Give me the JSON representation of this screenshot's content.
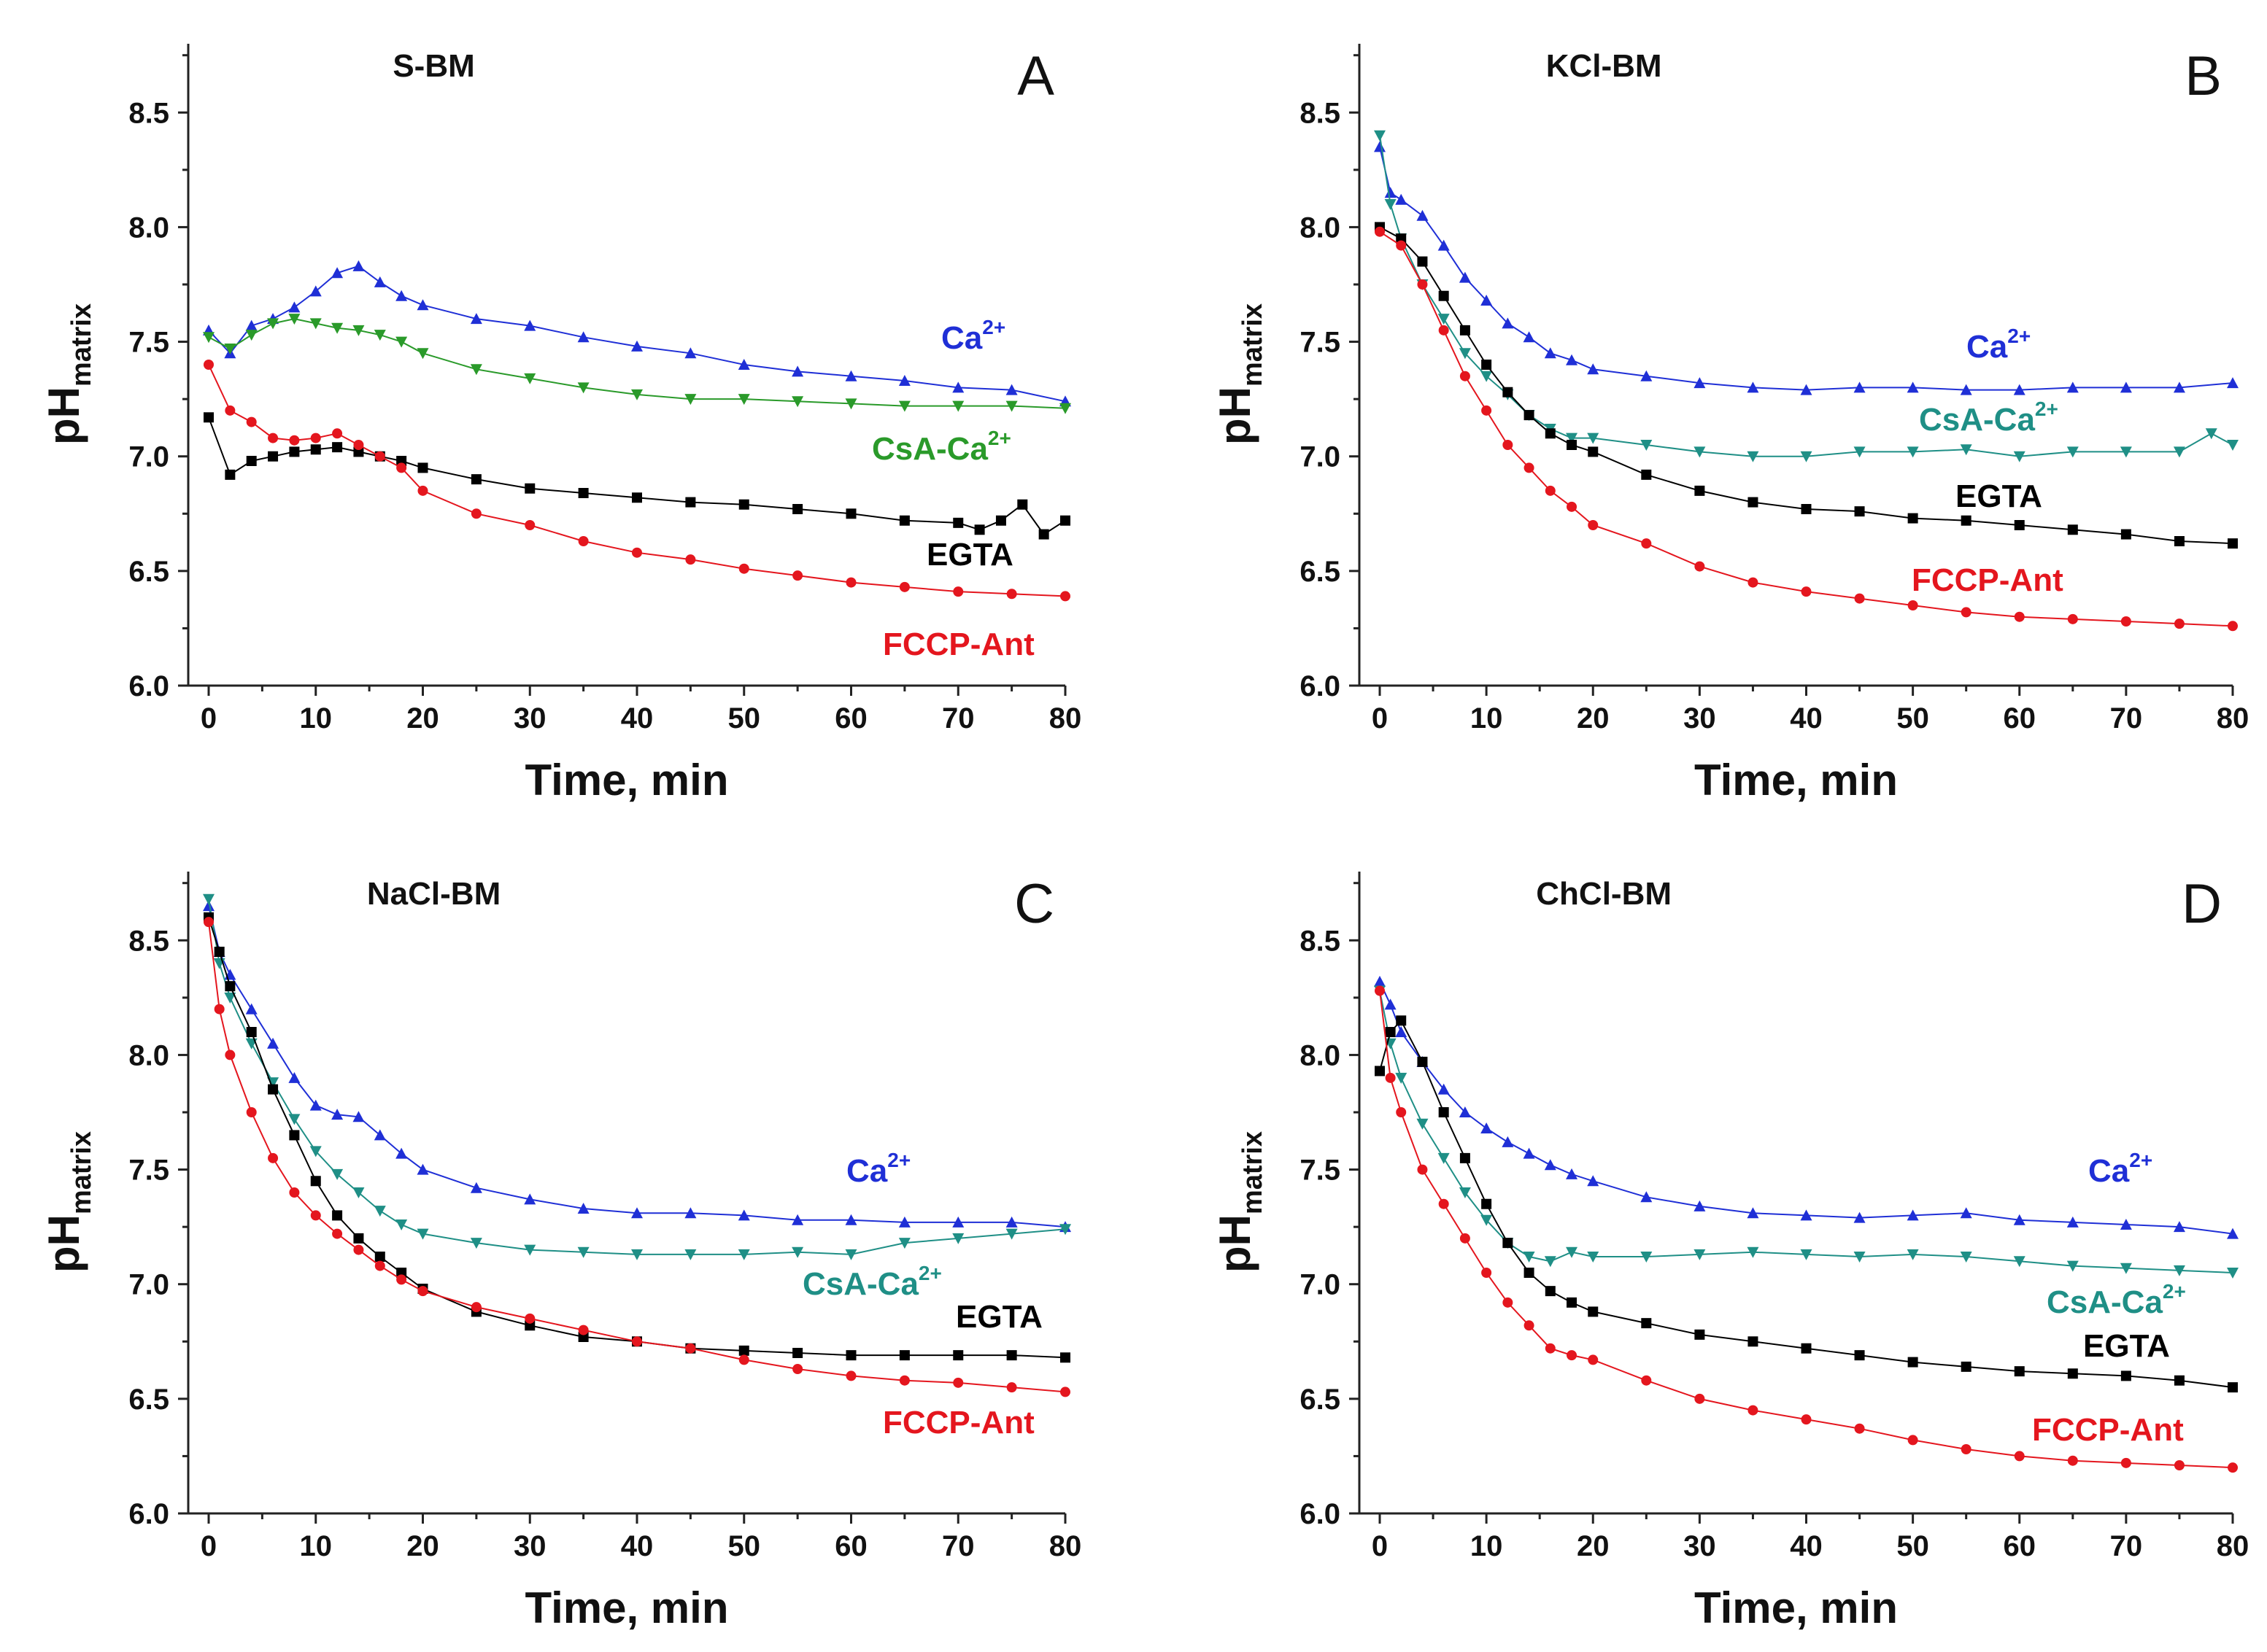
{
  "figure": {
    "x_axis_label": "Time, min"
  },
  "chart_data": [
    {
      "type": "line",
      "panel": "A",
      "title": "S-BM",
      "xlabel": "Time, min",
      "ylabel_main": "pH",
      "ylabel_sub": "matrix",
      "xlim": [
        0,
        80
      ],
      "ylim": [
        6.0,
        8.8
      ],
      "xticks": [
        "0",
        "10",
        "20",
        "30",
        "40",
        "50",
        "60",
        "70",
        "80"
      ],
      "yticks": [
        "6.0",
        "6.5",
        "7.0",
        "7.5",
        "8.0",
        "8.5"
      ],
      "series": [
        {
          "name": "Ca2+",
          "label_main": "Ca",
          "label_sup": "2+",
          "color": "#1f2fd6",
          "marker": "triangle-up",
          "x": [
            0,
            2,
            4,
            6,
            8,
            10,
            12,
            14,
            16,
            18,
            20,
            25,
            30,
            35,
            40,
            45,
            50,
            55,
            60,
            65,
            70,
            75,
            80
          ],
          "y": [
            7.55,
            7.45,
            7.57,
            7.6,
            7.65,
            7.72,
            7.8,
            7.83,
            7.76,
            7.7,
            7.66,
            7.6,
            7.57,
            7.52,
            7.48,
            7.45,
            7.4,
            7.37,
            7.35,
            7.33,
            7.3,
            7.29,
            7.24
          ]
        },
        {
          "name": "CsA-Ca2+",
          "label_main": "CsA-Ca",
          "label_sup": "2+",
          "color": "#2a9a2a",
          "marker": "triangle-down",
          "x": [
            0,
            2,
            4,
            6,
            8,
            10,
            12,
            14,
            16,
            18,
            20,
            25,
            30,
            35,
            40,
            45,
            50,
            55,
            60,
            65,
            70,
            75,
            80
          ],
          "y": [
            7.52,
            7.47,
            7.53,
            7.58,
            7.6,
            7.58,
            7.56,
            7.55,
            7.53,
            7.5,
            7.45,
            7.38,
            7.34,
            7.3,
            7.27,
            7.25,
            7.25,
            7.24,
            7.23,
            7.22,
            7.22,
            7.22,
            7.21
          ]
        },
        {
          "name": "EGTA",
          "label_main": "EGTA",
          "label_sup": "",
          "color": "#000000",
          "marker": "square",
          "x": [
            0,
            2,
            4,
            6,
            8,
            10,
            12,
            14,
            16,
            18,
            20,
            25,
            30,
            35,
            40,
            45,
            50,
            55,
            60,
            65,
            70,
            72,
            74,
            76,
            78,
            80
          ],
          "y": [
            7.17,
            6.92,
            6.98,
            7.0,
            7.02,
            7.03,
            7.04,
            7.02,
            7.0,
            6.98,
            6.95,
            6.9,
            6.86,
            6.84,
            6.82,
            6.8,
            6.79,
            6.77,
            6.75,
            6.72,
            6.71,
            6.68,
            6.72,
            6.79,
            6.66,
            6.72
          ]
        },
        {
          "name": "FCCP-Ant",
          "label_main": "FCCP-Ant",
          "label_sup": "",
          "color": "#e4161e",
          "marker": "circle",
          "x": [
            0,
            2,
            4,
            6,
            8,
            10,
            12,
            14,
            16,
            18,
            20,
            25,
            30,
            35,
            40,
            45,
            50,
            55,
            60,
            65,
            70,
            75,
            80
          ],
          "y": [
            7.4,
            7.2,
            7.15,
            7.08,
            7.07,
            7.08,
            7.1,
            7.05,
            7.0,
            6.95,
            6.85,
            6.75,
            6.7,
            6.63,
            6.58,
            6.55,
            6.51,
            6.48,
            6.45,
            6.43,
            6.41,
            6.4,
            6.39
          ]
        }
      ]
    },
    {
      "type": "line",
      "panel": "B",
      "title": "KCl-BM",
      "xlabel": "Time, min",
      "ylabel_main": "pH",
      "ylabel_sub": "matrix",
      "xlim": [
        0,
        80
      ],
      "ylim": [
        6.0,
        8.8
      ],
      "xticks": [
        "0",
        "10",
        "20",
        "30",
        "40",
        "50",
        "60",
        "70",
        "80"
      ],
      "yticks": [
        "6.0",
        "6.5",
        "7.0",
        "7.5",
        "8.0",
        "8.5"
      ],
      "series": [
        {
          "name": "Ca2+",
          "label_main": "Ca",
          "label_sup": "2+",
          "color": "#1f2fd6",
          "marker": "triangle-up",
          "x": [
            0,
            1,
            2,
            4,
            6,
            8,
            10,
            12,
            14,
            16,
            18,
            20,
            25,
            30,
            35,
            40,
            45,
            50,
            55,
            60,
            65,
            70,
            75,
            80
          ],
          "y": [
            8.35,
            8.15,
            8.12,
            8.05,
            7.92,
            7.78,
            7.68,
            7.58,
            7.52,
            7.45,
            7.42,
            7.38,
            7.35,
            7.32,
            7.3,
            7.29,
            7.3,
            7.3,
            7.29,
            7.29,
            7.3,
            7.3,
            7.3,
            7.32
          ]
        },
        {
          "name": "CsA-Ca2+",
          "label_main": "CsA-Ca",
          "label_sup": "2+",
          "color": "#1f8f86",
          "marker": "triangle-down",
          "x": [
            0,
            1,
            2,
            4,
            6,
            8,
            10,
            12,
            14,
            16,
            18,
            20,
            25,
            30,
            35,
            40,
            45,
            50,
            55,
            60,
            65,
            70,
            75,
            78,
            80
          ],
          "y": [
            8.4,
            8.1,
            7.95,
            7.75,
            7.6,
            7.45,
            7.35,
            7.27,
            7.18,
            7.12,
            7.08,
            7.08,
            7.05,
            7.02,
            7.0,
            7.0,
            7.02,
            7.02,
            7.03,
            7.0,
            7.02,
            7.02,
            7.02,
            7.1,
            7.05
          ]
        },
        {
          "name": "EGTA",
          "label_main": "EGTA",
          "label_sup": "",
          "color": "#000000",
          "marker": "square",
          "x": [
            0,
            2,
            4,
            6,
            8,
            10,
            12,
            14,
            16,
            18,
            20,
            25,
            30,
            35,
            40,
            45,
            50,
            55,
            60,
            65,
            70,
            75,
            80
          ],
          "y": [
            8.0,
            7.95,
            7.85,
            7.7,
            7.55,
            7.4,
            7.28,
            7.18,
            7.1,
            7.05,
            7.02,
            6.92,
            6.85,
            6.8,
            6.77,
            6.76,
            6.73,
            6.72,
            6.7,
            6.68,
            6.66,
            6.63,
            6.62
          ]
        },
        {
          "name": "FCCP-Ant",
          "label_main": "FCCP-Ant",
          "label_sup": "",
          "color": "#e4161e",
          "marker": "circle",
          "x": [
            0,
            2,
            4,
            6,
            8,
            10,
            12,
            14,
            16,
            18,
            20,
            25,
            30,
            35,
            40,
            45,
            50,
            55,
            60,
            65,
            70,
            75,
            80
          ],
          "y": [
            7.98,
            7.92,
            7.75,
            7.55,
            7.35,
            7.2,
            7.05,
            6.95,
            6.85,
            6.78,
            6.7,
            6.62,
            6.52,
            6.45,
            6.41,
            6.38,
            6.35,
            6.32,
            6.3,
            6.29,
            6.28,
            6.27,
            6.26
          ]
        }
      ]
    },
    {
      "type": "line",
      "panel": "C",
      "title": "NaCl-BM",
      "xlabel": "Time, min",
      "ylabel_main": "pH",
      "ylabel_sub": "matrix",
      "xlim": [
        0,
        80
      ],
      "ylim": [
        6.0,
        8.8
      ],
      "xticks": [
        "0",
        "10",
        "20",
        "30",
        "40",
        "50",
        "60",
        "70",
        "80"
      ],
      "yticks": [
        "6.0",
        "6.5",
        "7.0",
        "7.5",
        "8.0",
        "8.5"
      ],
      "series": [
        {
          "name": "Ca2+",
          "label_main": "Ca",
          "label_sup": "2+",
          "color": "#1f2fd6",
          "marker": "triangle-up",
          "x": [
            0,
            1,
            2,
            4,
            6,
            8,
            10,
            12,
            14,
            16,
            18,
            20,
            25,
            30,
            35,
            40,
            45,
            50,
            55,
            60,
            65,
            70,
            75,
            80
          ],
          "y": [
            8.65,
            8.45,
            8.35,
            8.2,
            8.05,
            7.9,
            7.78,
            7.74,
            7.73,
            7.65,
            7.57,
            7.5,
            7.42,
            7.37,
            7.33,
            7.31,
            7.31,
            7.3,
            7.28,
            7.28,
            7.27,
            7.27,
            7.27,
            7.25
          ]
        },
        {
          "name": "CsA-Ca2+",
          "label_main": "CsA-Ca",
          "label_sup": "2+",
          "color": "#1f8f86",
          "marker": "triangle-down",
          "x": [
            0,
            1,
            2,
            4,
            6,
            8,
            10,
            12,
            14,
            16,
            18,
            20,
            25,
            30,
            35,
            40,
            45,
            50,
            55,
            60,
            65,
            70,
            75,
            80
          ],
          "y": [
            8.68,
            8.4,
            8.25,
            8.05,
            7.88,
            7.72,
            7.58,
            7.48,
            7.4,
            7.32,
            7.26,
            7.22,
            7.18,
            7.15,
            7.14,
            7.13,
            7.13,
            7.13,
            7.14,
            7.13,
            7.18,
            7.2,
            7.22,
            7.24
          ]
        },
        {
          "name": "EGTA",
          "label_main": "EGTA",
          "label_sup": "",
          "color": "#000000",
          "marker": "square",
          "x": [
            0,
            1,
            2,
            4,
            6,
            8,
            10,
            12,
            14,
            16,
            18,
            20,
            25,
            30,
            35,
            40,
            45,
            50,
            55,
            60,
            65,
            70,
            75,
            80
          ],
          "y": [
            8.6,
            8.45,
            8.3,
            8.1,
            7.85,
            7.65,
            7.45,
            7.3,
            7.2,
            7.12,
            7.05,
            6.98,
            6.88,
            6.82,
            6.77,
            6.75,
            6.72,
            6.71,
            6.7,
            6.69,
            6.69,
            6.69,
            6.69,
            6.68
          ]
        },
        {
          "name": "FCCP-Ant",
          "label_main": "FCCP-Ant",
          "label_sup": "",
          "color": "#e4161e",
          "marker": "circle",
          "x": [
            0,
            1,
            2,
            4,
            6,
            8,
            10,
            12,
            14,
            16,
            18,
            20,
            25,
            30,
            35,
            40,
            45,
            50,
            55,
            60,
            65,
            70,
            75,
            80
          ],
          "y": [
            8.58,
            8.2,
            8.0,
            7.75,
            7.55,
            7.4,
            7.3,
            7.22,
            7.15,
            7.08,
            7.02,
            6.97,
            6.9,
            6.85,
            6.8,
            6.75,
            6.72,
            6.67,
            6.63,
            6.6,
            6.58,
            6.57,
            6.55,
            6.53
          ]
        }
      ]
    },
    {
      "type": "line",
      "panel": "D",
      "title": "ChCl-BM",
      "xlabel": "Time, min",
      "ylabel_main": "pH",
      "ylabel_sub": "matrix",
      "xlim": [
        0,
        80
      ],
      "ylim": [
        6.0,
        8.8
      ],
      "xticks": [
        "0",
        "10",
        "20",
        "30",
        "40",
        "50",
        "60",
        "70",
        "80"
      ],
      "yticks": [
        "6.0",
        "6.5",
        "7.0",
        "7.5",
        "8.0",
        "8.5"
      ],
      "series": [
        {
          "name": "Ca2+",
          "label_main": "Ca",
          "label_sup": "2+",
          "color": "#1f2fd6",
          "marker": "triangle-up",
          "x": [
            0,
            1,
            2,
            4,
            6,
            8,
            10,
            12,
            14,
            16,
            18,
            20,
            25,
            30,
            35,
            40,
            45,
            50,
            55,
            60,
            65,
            70,
            75,
            80
          ],
          "y": [
            8.32,
            8.22,
            8.1,
            7.97,
            7.85,
            7.75,
            7.68,
            7.62,
            7.57,
            7.52,
            7.48,
            7.45,
            7.38,
            7.34,
            7.31,
            7.3,
            7.29,
            7.3,
            7.31,
            7.28,
            7.27,
            7.26,
            7.25,
            7.22
          ]
        },
        {
          "name": "CsA-Ca2+",
          "label_main": "CsA-Ca",
          "label_sup": "2+",
          "color": "#1f8f86",
          "marker": "triangle-down",
          "x": [
            0,
            1,
            2,
            4,
            6,
            8,
            10,
            12,
            14,
            16,
            18,
            20,
            25,
            30,
            35,
            40,
            45,
            50,
            55,
            60,
            65,
            70,
            75,
            80
          ],
          "y": [
            8.28,
            8.05,
            7.9,
            7.7,
            7.55,
            7.4,
            7.28,
            7.18,
            7.12,
            7.1,
            7.14,
            7.12,
            7.12,
            7.13,
            7.14,
            7.13,
            7.12,
            7.13,
            7.12,
            7.1,
            7.08,
            7.07,
            7.06,
            7.05
          ]
        },
        {
          "name": "EGTA",
          "label_main": "EGTA",
          "label_sup": "",
          "color": "#000000",
          "marker": "square",
          "x": [
            0,
            1,
            2,
            4,
            6,
            8,
            10,
            12,
            14,
            16,
            18,
            20,
            25,
            30,
            35,
            40,
            45,
            50,
            55,
            60,
            65,
            70,
            75,
            80
          ],
          "y": [
            7.93,
            8.1,
            8.15,
            7.97,
            7.75,
            7.55,
            7.35,
            7.18,
            7.05,
            6.97,
            6.92,
            6.88,
            6.83,
            6.78,
            6.75,
            6.72,
            6.69,
            6.66,
            6.64,
            6.62,
            6.61,
            6.6,
            6.58,
            6.55
          ]
        },
        {
          "name": "FCCP-Ant",
          "label_main": "FCCP-Ant",
          "label_sup": "",
          "color": "#e4161e",
          "marker": "circle",
          "x": [
            0,
            1,
            2,
            4,
            6,
            8,
            10,
            12,
            14,
            16,
            18,
            20,
            25,
            30,
            35,
            40,
            45,
            50,
            55,
            60,
            65,
            70,
            75,
            80
          ],
          "y": [
            8.28,
            7.9,
            7.75,
            7.5,
            7.35,
            7.2,
            7.05,
            6.92,
            6.82,
            6.72,
            6.69,
            6.67,
            6.58,
            6.5,
            6.45,
            6.41,
            6.37,
            6.32,
            6.28,
            6.25,
            6.23,
            6.22,
            6.21,
            6.2
          ]
        }
      ]
    }
  ]
}
